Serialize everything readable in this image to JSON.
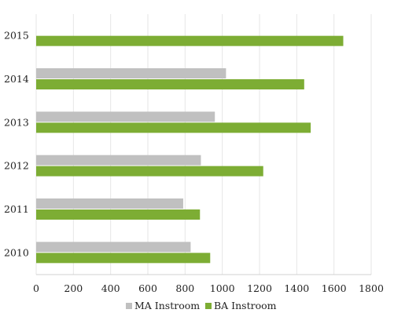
{
  "chart_data": {
    "type": "bar",
    "orientation": "horizontal",
    "categories": [
      "2015",
      "2014",
      "2013",
      "2012",
      "2011",
      "2010"
    ],
    "series": [
      {
        "name": "MA Instroom",
        "color": "#c0c0c0",
        "values": [
          null,
          1020,
          960,
          885,
          790,
          830
        ]
      },
      {
        "name": "BA Instroom",
        "color": "#7dad34",
        "values": [
          1650,
          1440,
          1475,
          1220,
          880,
          935
        ]
      }
    ],
    "xlim": [
      0,
      1800
    ],
    "xticks": [
      0,
      200,
      400,
      600,
      800,
      1000,
      1200,
      1400,
      1600,
      1800
    ],
    "grid": true,
    "legend_position": "bottom"
  }
}
